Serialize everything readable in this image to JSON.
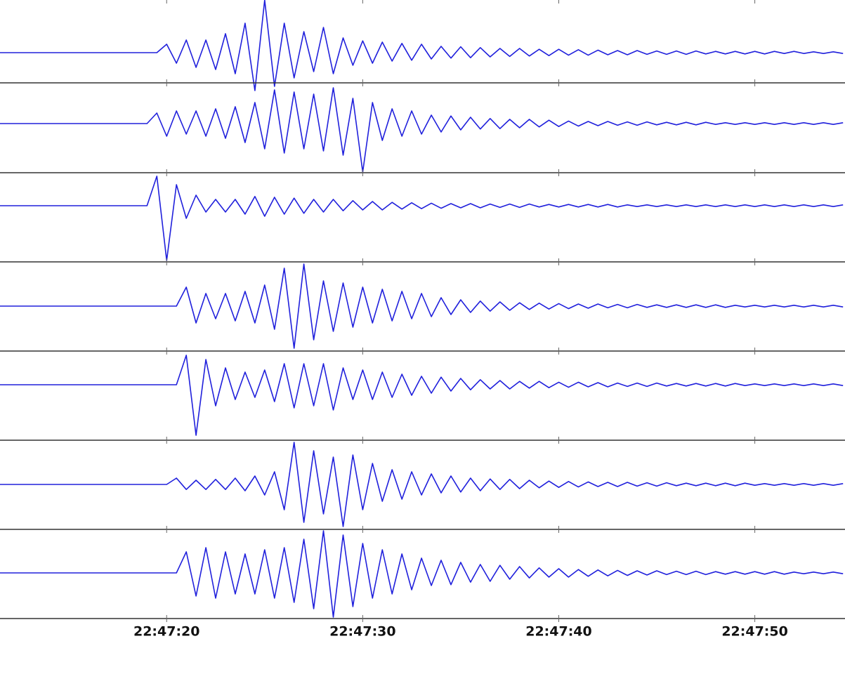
{
  "chart_data": {
    "type": "seismogram",
    "xlim": [
      11.5,
      54.6
    ],
    "xticks": [
      {
        "value": 20,
        "label": "22:47:20"
      },
      {
        "value": 30,
        "label": "22:47:30"
      },
      {
        "value": 40,
        "label": "22:47:40"
      },
      {
        "value": 50,
        "label": "22:47:50"
      }
    ],
    "ylim": [
      -1.5,
      1.5
    ],
    "x": [
      11.5,
      19,
      19.5,
      20,
      20.5,
      21,
      21.5,
      22,
      22.5,
      23,
      23.5,
      24,
      24.5,
      25,
      25.5,
      26,
      26.5,
      27,
      27.5,
      28,
      28.5,
      29,
      29.5,
      30,
      30.5,
      31,
      31.5,
      32,
      32.5,
      33,
      33.5,
      34,
      34.5,
      35,
      35.5,
      36,
      36.5,
      37,
      37.5,
      38,
      38.5,
      39,
      39.5,
      40,
      40.5,
      41,
      41.5,
      42,
      42.5,
      43,
      43.5,
      44,
      44.5,
      45,
      45.5,
      46,
      46.5,
      47,
      47.5,
      48,
      48.5,
      49,
      49.5,
      50,
      50.5,
      51,
      51.5,
      52,
      52.5,
      53,
      53.5,
      54,
      54.5
    ],
    "series": [
      {
        "color": "#2020dc",
        "values": [
          0,
          0,
          0,
          0.2,
          -0.25,
          0.3,
          -0.35,
          0.3,
          -0.4,
          0.45,
          -0.5,
          0.7,
          -0.9,
          1.25,
          -0.8,
          0.7,
          -0.6,
          0.5,
          -0.45,
          0.6,
          -0.5,
          0.35,
          -0.3,
          0.28,
          -0.25,
          0.25,
          -0.2,
          0.22,
          -0.18,
          0.2,
          -0.15,
          0.15,
          -0.13,
          0.14,
          -0.12,
          0.12,
          -0.1,
          0.1,
          -0.09,
          0.1,
          -0.08,
          0.08,
          -0.07,
          0.08,
          -0.06,
          0.07,
          -0.06,
          0.06,
          -0.05,
          0.05,
          -0.05,
          0.05,
          -0.04,
          0.04,
          -0.04,
          0.04,
          -0.04,
          0.04,
          -0.03,
          0.03,
          -0.03,
          0.03,
          -0.03,
          0.03,
          -0.03,
          0.03,
          -0.02,
          0.03,
          -0.02,
          0.02,
          -0.02,
          0.02,
          -0.02
        ]
      },
      {
        "color": "#2020dc",
        "values": [
          0,
          0,
          0.25,
          -0.3,
          0.3,
          -0.25,
          0.3,
          -0.3,
          0.35,
          -0.35,
          0.4,
          -0.45,
          0.5,
          -0.6,
          0.8,
          -0.7,
          0.75,
          -0.6,
          0.7,
          -0.65,
          0.85,
          -0.75,
          0.6,
          -1.15,
          0.5,
          -0.4,
          0.35,
          -0.3,
          0.3,
          -0.25,
          0.2,
          -0.2,
          0.18,
          -0.15,
          0.15,
          -0.13,
          0.12,
          -0.12,
          0.1,
          -0.1,
          0.1,
          -0.08,
          0.08,
          -0.07,
          0.06,
          -0.06,
          0.05,
          -0.05,
          0.05,
          -0.04,
          0.04,
          -0.04,
          0.04,
          -0.03,
          0.03,
          -0.03,
          0.03,
          -0.03,
          0.03,
          -0.02,
          0.02,
          -0.02,
          0.02,
          -0.02,
          0.02,
          -0.02,
          0.02,
          -0.02,
          0.02,
          -0.02,
          0.02,
          -0.02,
          0.02
        ]
      },
      {
        "color": "#2020dc",
        "values": [
          0,
          0,
          0.7,
          -1.3,
          0.5,
          -0.3,
          0.25,
          -0.15,
          0.15,
          -0.15,
          0.15,
          -0.2,
          0.22,
          -0.25,
          0.2,
          -0.2,
          0.18,
          -0.18,
          0.15,
          -0.15,
          0.15,
          -0.12,
          0.12,
          -0.1,
          0.1,
          -0.1,
          0.08,
          -0.08,
          0.07,
          -0.07,
          0.06,
          -0.06,
          0.05,
          -0.05,
          0.05,
          -0.05,
          0.04,
          -0.04,
          0.04,
          -0.04,
          0.04,
          -0.03,
          0.03,
          -0.03,
          0.03,
          -0.03,
          0.03,
          -0.03,
          0.03,
          -0.03,
          0.02,
          -0.02,
          0.02,
          -0.02,
          0.02,
          -0.02,
          0.02,
          -0.02,
          0.02,
          -0.02,
          0.02,
          -0.02,
          0.02,
          -0.02,
          0.02,
          -0.02,
          0.02,
          -0.02,
          0.02,
          -0.02,
          0.02,
          -0.02,
          0.02
        ]
      },
      {
        "color": "#2020dc",
        "values": [
          0,
          0,
          0,
          0,
          0,
          0.45,
          -0.4,
          0.3,
          -0.3,
          0.3,
          -0.35,
          0.35,
          -0.4,
          0.5,
          -0.55,
          0.9,
          -1.0,
          1.0,
          -0.8,
          0.6,
          -0.6,
          0.55,
          -0.5,
          0.45,
          -0.4,
          0.4,
          -0.35,
          0.35,
          -0.3,
          0.3,
          -0.25,
          0.2,
          -0.2,
          0.15,
          -0.15,
          0.12,
          -0.12,
          0.1,
          -0.1,
          0.08,
          -0.08,
          0.07,
          -0.07,
          0.06,
          -0.06,
          0.05,
          -0.05,
          0.05,
          -0.04,
          0.04,
          -0.04,
          0.04,
          -0.03,
          0.03,
          -0.03,
          0.03,
          -0.03,
          0.03,
          -0.03,
          0.03,
          -0.03,
          0.02,
          -0.02,
          0.02,
          -0.02,
          0.02,
          -0.02,
          0.02,
          -0.02,
          0.02,
          -0.02,
          0.02,
          -0.02
        ]
      },
      {
        "color": "#2020dc",
        "values": [
          0,
          0,
          0,
          0,
          0,
          0.7,
          -1.2,
          0.6,
          -0.5,
          0.4,
          -0.35,
          0.3,
          -0.3,
          0.35,
          -0.4,
          0.5,
          -0.55,
          0.5,
          -0.5,
          0.5,
          -0.6,
          0.4,
          -0.35,
          0.35,
          -0.35,
          0.3,
          -0.3,
          0.25,
          -0.25,
          0.2,
          -0.2,
          0.18,
          -0.15,
          0.15,
          -0.12,
          0.12,
          -0.1,
          0.1,
          -0.1,
          0.08,
          -0.08,
          0.08,
          -0.07,
          0.06,
          -0.06,
          0.06,
          -0.05,
          0.05,
          -0.05,
          0.04,
          -0.04,
          0.04,
          -0.04,
          0.04,
          -0.03,
          0.03,
          -0.03,
          0.03,
          -0.03,
          0.03,
          -0.03,
          0.03,
          -0.02,
          0.02,
          -0.02,
          0.02,
          -0.02,
          0.02,
          -0.02,
          0.02,
          -0.02,
          0.02,
          -0.02
        ]
      },
      {
        "color": "#2020dc",
        "values": [
          0,
          0,
          0,
          0,
          0.15,
          -0.12,
          0.1,
          -0.12,
          0.12,
          -0.12,
          0.15,
          -0.15,
          0.2,
          -0.25,
          0.3,
          -0.6,
          1.0,
          -0.9,
          0.8,
          -0.7,
          0.65,
          -1.0,
          0.7,
          -0.6,
          0.5,
          -0.4,
          0.35,
          -0.35,
          0.3,
          -0.25,
          0.25,
          -0.2,
          0.2,
          -0.18,
          0.15,
          -0.15,
          0.13,
          -0.12,
          0.12,
          -0.1,
          0.1,
          -0.08,
          0.08,
          -0.07,
          0.07,
          -0.06,
          0.06,
          -0.05,
          0.05,
          -0.05,
          0.05,
          -0.04,
          0.04,
          -0.04,
          0.04,
          -0.03,
          0.03,
          -0.03,
          0.03,
          -0.03,
          0.03,
          -0.03,
          0.03,
          -0.02,
          0.02,
          -0.02,
          0.02,
          -0.02,
          0.02,
          -0.02,
          0.02,
          -0.02,
          0.02
        ]
      },
      {
        "color": "#2020dc",
        "values": [
          0,
          0,
          0,
          0,
          0,
          0.5,
          -0.55,
          0.6,
          -0.6,
          0.5,
          -0.5,
          0.45,
          -0.5,
          0.55,
          -0.6,
          0.6,
          -0.7,
          0.8,
          -0.85,
          1.0,
          -1.05,
          0.9,
          -0.8,
          0.7,
          -0.6,
          0.55,
          -0.5,
          0.45,
          -0.4,
          0.35,
          -0.3,
          0.3,
          -0.28,
          0.25,
          -0.22,
          0.2,
          -0.2,
          0.18,
          -0.15,
          0.15,
          -0.12,
          0.12,
          -0.1,
          0.1,
          -0.1,
          0.08,
          -0.08,
          0.07,
          -0.07,
          0.06,
          -0.06,
          0.05,
          -0.05,
          0.05,
          -0.04,
          0.04,
          -0.04,
          0.04,
          -0.04,
          0.03,
          -0.03,
          0.03,
          -0.03,
          0.03,
          -0.03,
          0.03,
          -0.03,
          0.02,
          -0.02,
          0.02,
          -0.02,
          0.02,
          -0.02
        ]
      }
    ]
  }
}
